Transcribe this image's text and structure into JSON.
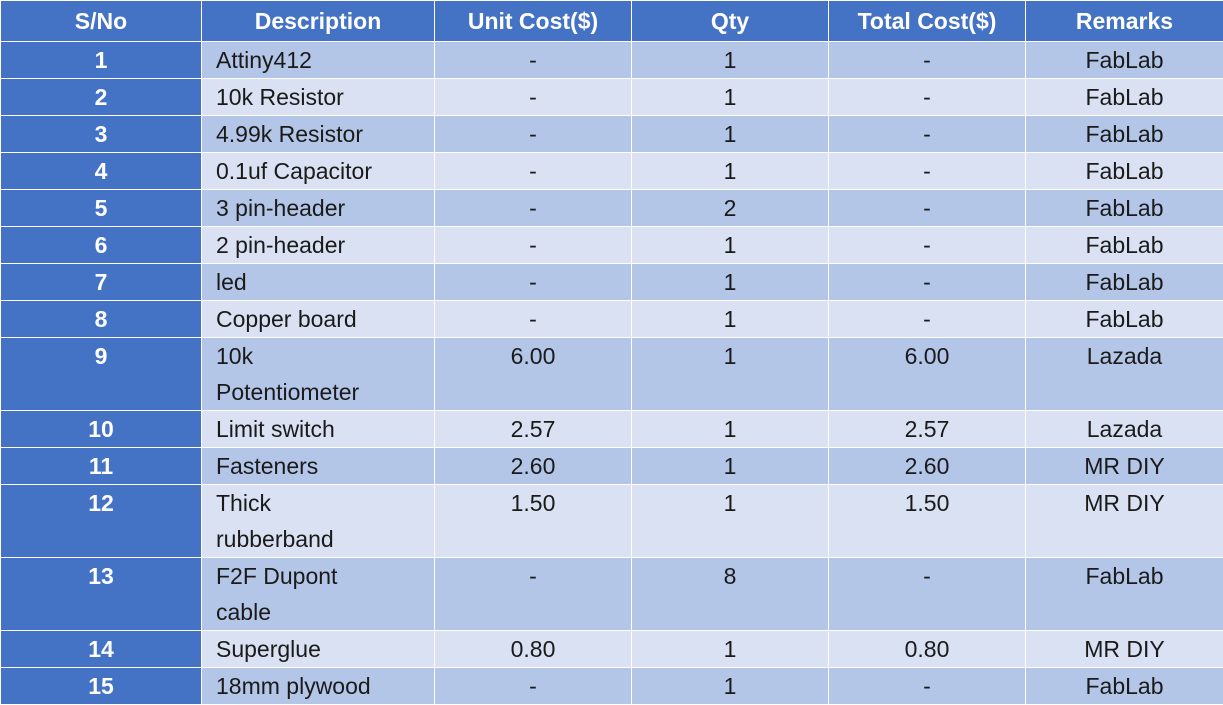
{
  "table": {
    "headers": [
      "S/No",
      "Description",
      "Unit Cost($)",
      "Qty",
      "Total Cost($)",
      "Remarks"
    ],
    "rows": [
      {
        "sno": "1",
        "desc": [
          "Attiny412"
        ],
        "unit": "-",
        "qty": "1",
        "total": "-",
        "remarks": "FabLab"
      },
      {
        "sno": "2",
        "desc": [
          "10k Resistor"
        ],
        "unit": "-",
        "qty": "1",
        "total": "-",
        "remarks": "FabLab"
      },
      {
        "sno": "3",
        "desc": [
          "4.99k Resistor"
        ],
        "unit": "-",
        "qty": "1",
        "total": "-",
        "remarks": "FabLab"
      },
      {
        "sno": "4",
        "desc": [
          "0.1uf Capacitor"
        ],
        "unit": "-",
        "qty": "1",
        "total": "-",
        "remarks": "FabLab"
      },
      {
        "sno": "5",
        "desc": [
          "3 pin-header"
        ],
        "unit": "-",
        "qty": "2",
        "total": "-",
        "remarks": "FabLab"
      },
      {
        "sno": "6",
        "desc": [
          "2 pin-header"
        ],
        "unit": "-",
        "qty": "1",
        "total": "-",
        "remarks": "FabLab"
      },
      {
        "sno": "7",
        "desc": [
          "led"
        ],
        "unit": "-",
        "qty": "1",
        "total": "-",
        "remarks": "FabLab"
      },
      {
        "sno": "8",
        "desc": [
          "Copper board"
        ],
        "unit": "-",
        "qty": "1",
        "total": "-",
        "remarks": "FabLab"
      },
      {
        "sno": "9",
        "desc": [
          "10k",
          "Potentiometer"
        ],
        "unit": "6.00",
        "qty": "1",
        "total": "6.00",
        "remarks": "Lazada"
      },
      {
        "sno": "10",
        "desc": [
          "Limit switch"
        ],
        "unit": "2.57",
        "qty": "1",
        "total": "2.57",
        "remarks": "Lazada"
      },
      {
        "sno": "11",
        "desc": [
          "Fasteners"
        ],
        "unit": "2.60",
        "qty": "1",
        "total": "2.60",
        "remarks": "MR DIY"
      },
      {
        "sno": "12",
        "desc": [
          "Thick",
          "rubberband"
        ],
        "unit": "1.50",
        "qty": "1",
        "total": "1.50",
        "remarks": "MR DIY"
      },
      {
        "sno": "13",
        "desc": [
          "F2F Dupont",
          "cable"
        ],
        "unit": "-",
        "qty": "8",
        "total": "-",
        "remarks": "FabLab"
      },
      {
        "sno": "14",
        "desc": [
          "Superglue"
        ],
        "unit": "0.80",
        "qty": "1",
        "total": "0.80",
        "remarks": "MR DIY"
      },
      {
        "sno": "15",
        "desc": [
          "18mm plywood"
        ],
        "unit": "-",
        "qty": "1",
        "total": "-",
        "remarks": "FabLab"
      }
    ]
  },
  "colors": {
    "header_bg": "#4472c4",
    "row_band_dark": "#b4c6e7",
    "row_band_light": "#d9e1f2"
  }
}
